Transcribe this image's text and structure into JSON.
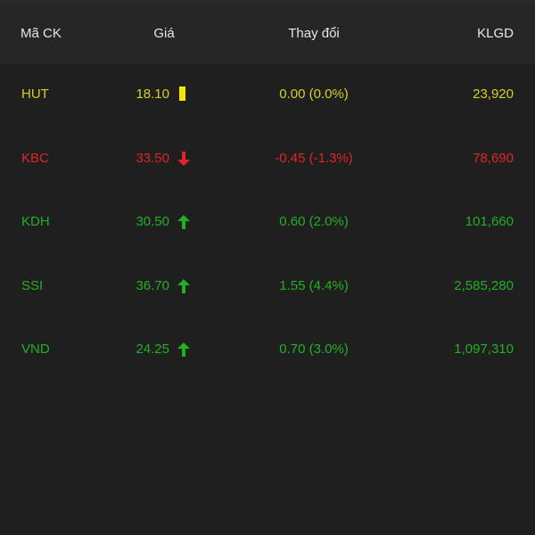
{
  "header": {
    "code": "Mã CK",
    "price": "Giá",
    "change": "Thay đổi",
    "volume": "KLGD"
  },
  "colors": {
    "reference": "#d4cf2c",
    "down": "#e0242a",
    "up": "#22b022",
    "background": "#1f1f1f",
    "header_bg": "#262626"
  },
  "rows": [
    {
      "code": "HUT",
      "price": "18.10",
      "indicator": "reference-bar-icon",
      "change": "0.00 (0.0%)",
      "volume": "23,920"
    },
    {
      "code": "KBC",
      "price": "33.50",
      "indicator": "arrow-down-icon",
      "change": "-0.45 (-1.3%)",
      "volume": "78,690"
    },
    {
      "code": "KDH",
      "price": "30.50",
      "indicator": "arrow-up-icon",
      "change": "0.60 (2.0%)",
      "volume": "101,660"
    },
    {
      "code": "SSI",
      "price": "36.70",
      "indicator": "arrow-up-icon",
      "change": "1.55 (4.4%)",
      "volume": "2,585,280"
    },
    {
      "code": "VND",
      "price": "24.25",
      "indicator": "arrow-up-icon",
      "change": "0.70 (3.0%)",
      "volume": "1,097,310"
    }
  ]
}
